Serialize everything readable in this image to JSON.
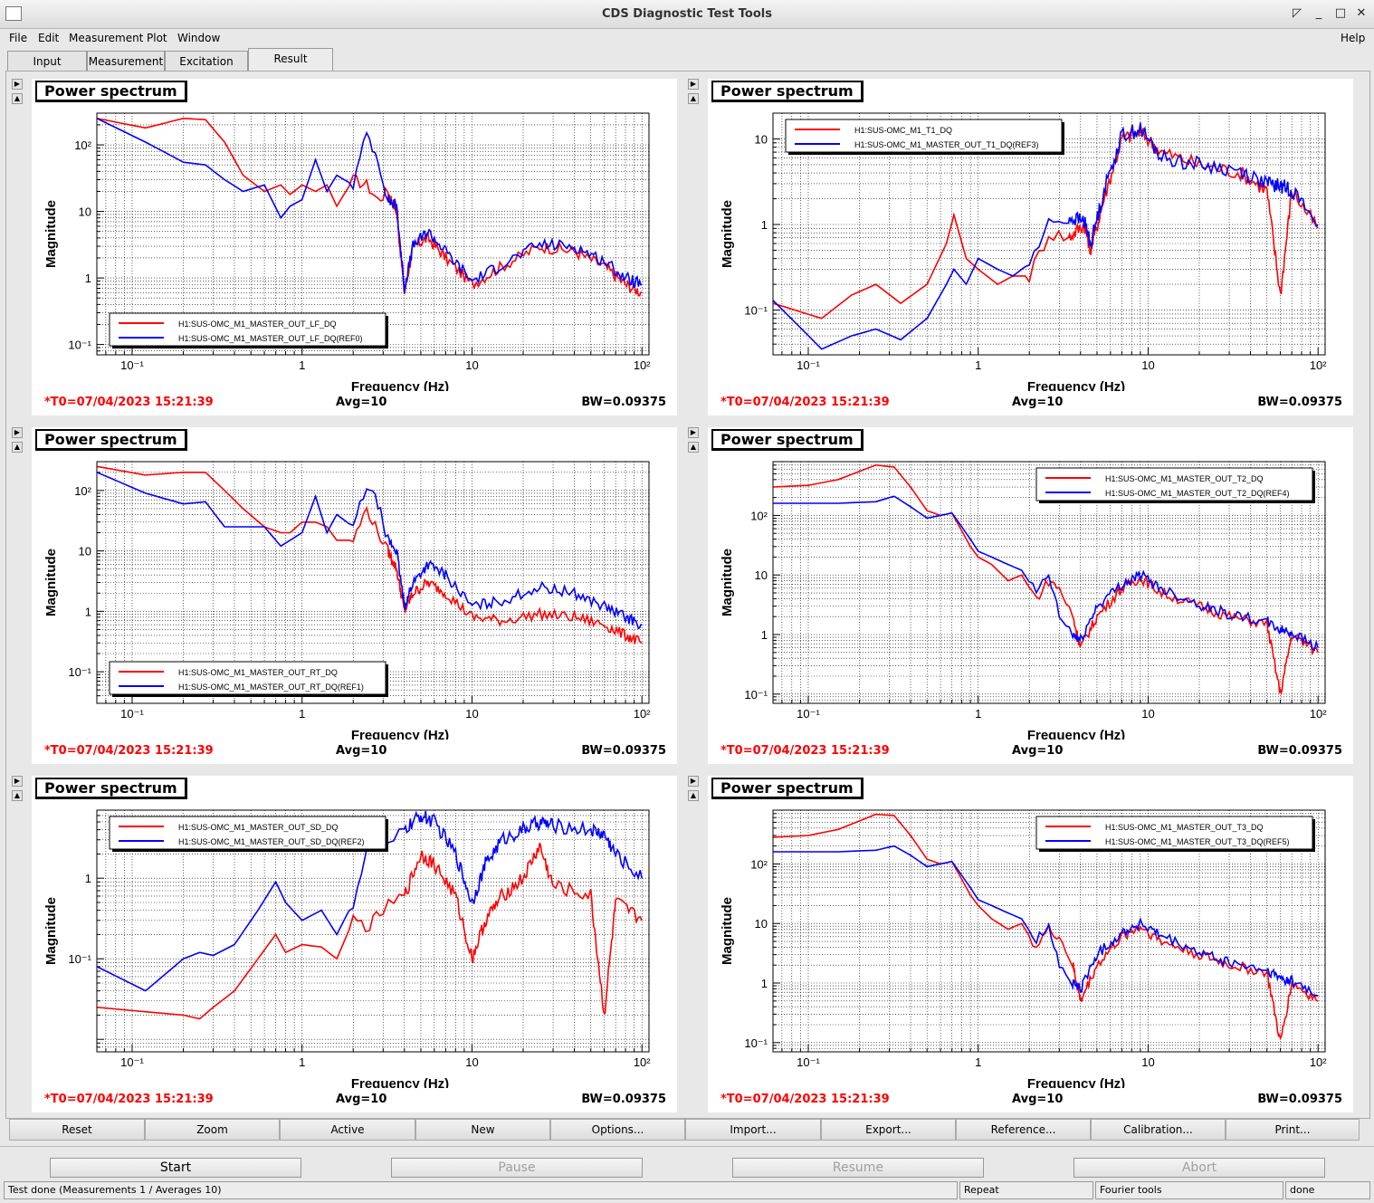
{
  "window": {
    "title": "CDS Diagnostic Test Tools",
    "controls": [
      "◸",
      "_",
      "□",
      "✕"
    ]
  },
  "menu": [
    "File",
    "Edit",
    "Measurement",
    "Plot",
    "Window",
    "Help"
  ],
  "tabs": [
    "Input",
    "Measurement",
    "Excitation",
    "Result"
  ],
  "active_tab": "Result",
  "panel_common": {
    "title": "Power spectrum",
    "xlabel": "Frequency (Hz)",
    "ylabel": "Magnitude",
    "t0": "*T0=07/04/2023 15:21:39",
    "avg": "Avg=10",
    "bw": "BW=0.09375"
  },
  "chart_data": [
    {
      "type": "line",
      "title": "Power spectrum",
      "xlabel": "Frequency (Hz)",
      "ylabel": "Magnitude",
      "xscale": "log",
      "yscale": "log",
      "xlim": [
        0.062,
        110
      ],
      "ylim": [
        0.07,
        300
      ],
      "grid": true,
      "legend": "bottom-left",
      "xticks": [
        "10⁻¹",
        "1",
        "10",
        "10²"
      ],
      "yticks": [
        "10⁻¹",
        "1",
        "10",
        "10²"
      ],
      "series": [
        {
          "name": "H1:SUS-OMC_M1_MASTER_OUT_LF_DQ",
          "color": "#ff0000",
          "x": [
            0.062,
            0.12,
            0.2,
            0.27,
            0.35,
            0.45,
            0.6,
            0.75,
            0.85,
            1.0,
            1.2,
            1.4,
            1.6,
            2.0,
            2.4,
            2.8,
            3.2,
            3.6,
            4.0,
            4.5,
            5.5,
            7.0,
            10,
            15,
            25,
            40,
            60,
            80,
            100
          ],
          "y": [
            250,
            180,
            250,
            240,
            110,
            35,
            20,
            25,
            18,
            25,
            20,
            25,
            12,
            30,
            25,
            15,
            20,
            10,
            0.6,
            3,
            4,
            2,
            0.8,
            1.5,
            3,
            2.5,
            1.5,
            0.8,
            0.6
          ]
        },
        {
          "name": "H1:SUS-OMC_M1_MASTER_OUT_LF_DQ(REF0)",
          "color": "#0000ff",
          "x": [
            0.062,
            0.12,
            0.2,
            0.27,
            0.35,
            0.45,
            0.6,
            0.75,
            0.85,
            1.0,
            1.2,
            1.4,
            1.6,
            2.0,
            2.4,
            2.8,
            3.2,
            3.6,
            4.0,
            4.5,
            5.5,
            7.0,
            10,
            15,
            25,
            40,
            60,
            80,
            100
          ],
          "y": [
            250,
            110,
            55,
            50,
            30,
            20,
            25,
            8,
            12,
            15,
            60,
            20,
            35,
            25,
            150,
            60,
            15,
            12,
            0.7,
            3,
            5,
            2.5,
            0.9,
            1.6,
            3.2,
            3,
            1.8,
            1,
            0.8
          ]
        }
      ]
    },
    {
      "type": "line",
      "title": "Power spectrum",
      "xlabel": "Frequency (Hz)",
      "ylabel": "Magnitude",
      "xscale": "log",
      "yscale": "log",
      "xlim": [
        0.062,
        110
      ],
      "ylim": [
        0.03,
        20
      ],
      "grid": true,
      "legend": "top-left",
      "xticks": [
        "10⁻¹",
        "1",
        "10",
        "10²"
      ],
      "yticks": [
        "10⁻¹",
        "1",
        "10"
      ],
      "series": [
        {
          "name": "H1:SUS-OMC_M1_T1_DQ",
          "color": "#ff0000",
          "x": [
            0.062,
            0.12,
            0.18,
            0.25,
            0.35,
            0.5,
            0.65,
            0.72,
            0.85,
            1.0,
            1.3,
            1.6,
            2.0,
            2.6,
            3.4,
            4.2,
            4.6,
            5.5,
            7.0,
            9.0,
            12,
            20,
            35,
            50,
            60,
            70,
            100
          ],
          "y": [
            0.12,
            0.08,
            0.15,
            0.2,
            0.12,
            0.2,
            0.6,
            1.3,
            0.4,
            0.3,
            0.2,
            0.25,
            0.25,
            0.8,
            0.7,
            1.0,
            0.5,
            2,
            10,
            12,
            7,
            5,
            4,
            2.5,
            0.15,
            2.5,
            0.9
          ]
        },
        {
          "name": "H1:SUS-OMC_M1_MASTER_OUT_T1_DQ(REF3)",
          "color": "#0000ff",
          "x": [
            0.062,
            0.12,
            0.18,
            0.25,
            0.35,
            0.5,
            0.65,
            0.72,
            0.85,
            1.0,
            1.3,
            1.6,
            2.0,
            2.6,
            3.4,
            4.2,
            4.6,
            5.5,
            7.0,
            9.0,
            12,
            20,
            35,
            50,
            60,
            70,
            100
          ],
          "y": [
            0.13,
            0.035,
            0.05,
            0.06,
            0.045,
            0.08,
            0.2,
            0.3,
            0.2,
            0.4,
            0.3,
            0.25,
            0.35,
            1.0,
            1.2,
            1.1,
            0.6,
            2.5,
            11,
            13,
            6,
            5,
            4.2,
            3,
            2.8,
            2.6,
            1.0
          ]
        }
      ]
    },
    {
      "type": "line",
      "title": "Power spectrum",
      "xlabel": "Frequency (Hz)",
      "ylabel": "Magnitude",
      "xscale": "log",
      "yscale": "log",
      "xlim": [
        0.062,
        110
      ],
      "ylim": [
        0.03,
        300
      ],
      "grid": true,
      "legend": "bottom-left",
      "xticks": [
        "10⁻¹",
        "1",
        "10",
        "10²"
      ],
      "yticks": [
        "10⁻¹",
        "1",
        "10",
        "10²"
      ],
      "series": [
        {
          "name": "H1:SUS-OMC_M1_MASTER_OUT_RT_DQ",
          "color": "#ff0000",
          "x": [
            0.062,
            0.12,
            0.2,
            0.27,
            0.35,
            0.45,
            0.6,
            0.75,
            0.85,
            1.0,
            1.2,
            1.4,
            1.6,
            2.0,
            2.4,
            2.8,
            3.2,
            3.6,
            4.0,
            4.5,
            5.5,
            7.0,
            10,
            15,
            25,
            40,
            60,
            80,
            100
          ],
          "y": [
            250,
            180,
            200,
            200,
            100,
            50,
            25,
            20,
            20,
            30,
            30,
            25,
            15,
            15,
            50,
            20,
            10,
            5,
            1.0,
            2,
            3,
            2,
            0.8,
            0.7,
            0.9,
            0.8,
            0.6,
            0.4,
            0.3
          ]
        },
        {
          "name": "H1:SUS-OMC_M1_MASTER_OUT_RT_DQ(REF1)",
          "color": "#0000ff",
          "x": [
            0.062,
            0.12,
            0.2,
            0.27,
            0.35,
            0.45,
            0.6,
            0.75,
            0.85,
            1.0,
            1.2,
            1.4,
            1.6,
            2.0,
            2.4,
            2.8,
            3.2,
            3.6,
            4.0,
            4.5,
            5.5,
            7.0,
            10,
            15,
            25,
            40,
            60,
            80,
            100
          ],
          "y": [
            200,
            90,
            60,
            65,
            25,
            25,
            25,
            12,
            15,
            20,
            80,
            20,
            40,
            25,
            120,
            60,
            15,
            10,
            1.2,
            3,
            6,
            4,
            1.2,
            1.5,
            2.5,
            2.0,
            1.2,
            0.8,
            0.6
          ]
        }
      ]
    },
    {
      "type": "line",
      "title": "Power spectrum",
      "xlabel": "Frequency (Hz)",
      "ylabel": "Magnitude",
      "xscale": "log",
      "yscale": "log",
      "xlim": [
        0.062,
        110
      ],
      "ylim": [
        0.07,
        800
      ],
      "grid": true,
      "legend": "top-right",
      "xticks": [
        "10⁻¹",
        "1",
        "10",
        "10²"
      ],
      "yticks": [
        "10⁻¹",
        "1",
        "10",
        "10²"
      ],
      "series": [
        {
          "name": "H1:SUS-OMC_M1_MASTER_OUT_T2_DQ",
          "color": "#ff0000",
          "x": [
            0.062,
            0.1,
            0.15,
            0.25,
            0.32,
            0.4,
            0.5,
            0.6,
            0.7,
            0.9,
            1.0,
            1.2,
            1.5,
            1.8,
            2.2,
            2.6,
            3.0,
            3.6,
            4.0,
            5.0,
            7.0,
            9.0,
            12,
            20,
            30,
            50,
            60,
            70,
            100
          ],
          "y": [
            300,
            320,
            400,
            700,
            650,
            300,
            120,
            100,
            110,
            30,
            20,
            15,
            8,
            10,
            4,
            8,
            6,
            2,
            0.6,
            2,
            6,
            9,
            5,
            3,
            2,
            1.5,
            0.1,
            1.0,
            0.5
          ]
        },
        {
          "name": "H1:SUS-OMC_M1_MASTER_OUT_T2_DQ(REF4)",
          "color": "#0000ff",
          "x": [
            0.062,
            0.1,
            0.15,
            0.25,
            0.32,
            0.4,
            0.5,
            0.6,
            0.7,
            0.9,
            1.0,
            1.2,
            1.5,
            1.8,
            2.2,
            2.6,
            3.0,
            3.6,
            4.0,
            5.0,
            7.0,
            9.0,
            12,
            20,
            30,
            50,
            60,
            70,
            100
          ],
          "y": [
            160,
            160,
            160,
            170,
            210,
            140,
            90,
            100,
            110,
            40,
            25,
            20,
            15,
            12,
            5,
            10,
            2,
            1,
            0.8,
            3,
            7,
            10,
            6,
            3.2,
            2.2,
            1.6,
            1.2,
            1.1,
            0.6
          ]
        }
      ]
    },
    {
      "type": "line",
      "title": "Power spectrum",
      "xlabel": "Frequency (Hz)",
      "ylabel": "Magnitude",
      "xscale": "log",
      "yscale": "log",
      "xlim": [
        0.062,
        110
      ],
      "ylim": [
        0.007,
        7
      ],
      "grid": true,
      "legend": "top-left",
      "xticks": [
        "10⁻¹",
        "1",
        "10",
        "10²"
      ],
      "yticks": [
        "10⁻¹",
        "1"
      ],
      "series": [
        {
          "name": "H1:SUS-OMC_M1_MASTER_OUT_SD_DQ",
          "color": "#ff0000",
          "x": [
            0.062,
            0.12,
            0.2,
            0.25,
            0.3,
            0.4,
            0.55,
            0.7,
            0.8,
            1.0,
            1.3,
            1.6,
            2.0,
            2.5,
            3.0,
            4.0,
            5.0,
            6.0,
            8.0,
            10,
            12,
            15,
            20,
            25,
            30,
            50,
            60,
            70,
            100
          ],
          "y": [
            0.025,
            0.022,
            0.02,
            0.018,
            0.025,
            0.04,
            0.1,
            0.2,
            0.12,
            0.15,
            0.14,
            0.1,
            0.3,
            0.25,
            0.4,
            0.6,
            2,
            1.5,
            0.6,
            0.1,
            0.3,
            0.6,
            1.0,
            2.5,
            0.8,
            0.6,
            0.02,
            0.5,
            0.3
          ]
        },
        {
          "name": "H1:SUS-OMC_M1_MASTER_OUT_SD_DQ(REF2)",
          "color": "#0000ff",
          "x": [
            0.062,
            0.12,
            0.2,
            0.25,
            0.3,
            0.4,
            0.55,
            0.7,
            0.8,
            1.0,
            1.3,
            1.6,
            2.0,
            2.5,
            3.0,
            4.0,
            5.0,
            6.0,
            8.0,
            10,
            12,
            15,
            20,
            25,
            30,
            50,
            60,
            70,
            100
          ],
          "y": [
            0.08,
            0.04,
            0.1,
            0.12,
            0.11,
            0.15,
            0.4,
            0.9,
            0.5,
            0.3,
            0.4,
            0.2,
            0.5,
            3,
            2,
            4,
            6,
            5,
            2,
            0.5,
            1.5,
            3,
            4,
            5,
            4.5,
            4,
            3.5,
            2,
            1
          ]
        }
      ]
    },
    {
      "type": "line",
      "title": "Power spectrum",
      "xlabel": "Frequency (Hz)",
      "ylabel": "Magnitude",
      "xscale": "log",
      "yscale": "log",
      "xlim": [
        0.062,
        110
      ],
      "ylim": [
        0.07,
        800
      ],
      "grid": true,
      "legend": "top-right",
      "xticks": [
        "10⁻¹",
        "1",
        "10",
        "10²"
      ],
      "yticks": [
        "10⁻¹",
        "1",
        "10",
        "10²"
      ],
      "series": [
        {
          "name": "H1:SUS-OMC_M1_MASTER_OUT_T3_DQ",
          "color": "#ff0000",
          "x": [
            0.062,
            0.1,
            0.15,
            0.25,
            0.32,
            0.4,
            0.5,
            0.6,
            0.7,
            0.9,
            1.0,
            1.2,
            1.5,
            1.8,
            2.2,
            2.6,
            3.0,
            3.6,
            4.0,
            5.0,
            7.0,
            9.0,
            12,
            20,
            30,
            50,
            60,
            70,
            100
          ],
          "y": [
            280,
            300,
            380,
            680,
            650,
            300,
            120,
            100,
            110,
            30,
            20,
            12,
            8,
            10,
            4,
            8,
            6,
            2,
            0.5,
            2,
            6,
            9,
            5,
            3,
            2,
            1.5,
            0.1,
            1.0,
            0.5
          ]
        },
        {
          "name": "H1:SUS-OMC_M1_MASTER_OUT_T3_DQ(REF5)",
          "color": "#0000ff",
          "x": [
            0.062,
            0.1,
            0.15,
            0.25,
            0.32,
            0.4,
            0.5,
            0.6,
            0.7,
            0.9,
            1.0,
            1.2,
            1.5,
            1.8,
            2.2,
            2.6,
            3.0,
            3.6,
            4.0,
            5.0,
            7.0,
            9.0,
            12,
            20,
            30,
            50,
            60,
            70,
            100
          ],
          "y": [
            160,
            160,
            160,
            170,
            200,
            140,
            90,
            100,
            110,
            40,
            25,
            20,
            15,
            12,
            5,
            10,
            2,
            1,
            0.8,
            3,
            7,
            10,
            6,
            3.2,
            2.2,
            1.6,
            1.2,
            1.1,
            0.6
          ]
        }
      ]
    }
  ],
  "bottom_buttons": [
    "Reset",
    "Zoom",
    "Active",
    "New",
    "Options...",
    "Import...",
    "Export...",
    "Reference...",
    "Calibration...",
    "Print..."
  ],
  "run_buttons": [
    {
      "label": "Start",
      "enabled": true
    },
    {
      "label": "Pause",
      "enabled": false
    },
    {
      "label": "Resume",
      "enabled": false
    },
    {
      "label": "Abort",
      "enabled": false
    }
  ],
  "status": {
    "message": "Test done (Measurements 1 / Averages 10)",
    "repeat": "Repeat",
    "tool": "Fourier tools",
    "state": "done"
  }
}
